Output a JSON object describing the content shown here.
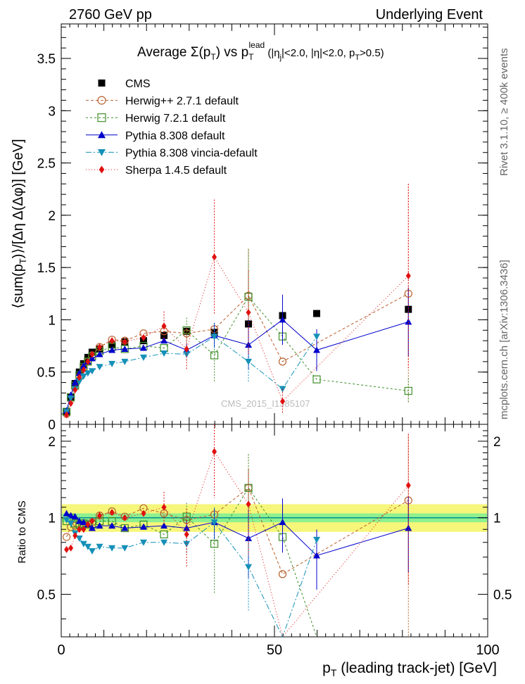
{
  "header": {
    "left": "2760 GeV pp",
    "right": "Underlying Event"
  },
  "side_labels": {
    "events": "Rivet 3.1.10, ≥ 400k events",
    "site": "mcplots.cern.ch [arXiv:1306.3436]"
  },
  "watermark": "CMS_2015_I1385107",
  "chart_data": [
    {
      "type": "scatter",
      "title_parts": {
        "a": "Average ",
        "b": "Σ(p",
        "c": "T",
        "d": ") vs p",
        "e": "T",
        "f": "lead",
        "g": " (|η",
        "h": "j",
        "i": "|<2.0, |η|<2.0, p",
        "j": "T",
        "k": ">0.5)"
      },
      "ylabel": "⟨sum(p_T)⟩/[Δη Δ(Δφ)] [GeV]",
      "xlim": [
        0,
        100
      ],
      "ylim": [
        0,
        3.83
      ],
      "yticks": [
        "0",
        "0.5",
        "1",
        "1.5",
        "2",
        "2.5",
        "3",
        "3.5"
      ],
      "ytick_values": [
        0,
        0.5,
        1,
        1.5,
        2,
        2.5,
        3,
        3.5
      ],
      "x": [
        1.25,
        2.25,
        3.25,
        4.25,
        5.25,
        6.25,
        7.25,
        9.0,
        11.9,
        14.9,
        19.3,
        24.1,
        29.4,
        35.9,
        43.9,
        51.9,
        59.9,
        81.4
      ],
      "series": [
        {
          "name": "CMS",
          "color": "#000000",
          "marker": "square",
          "values": [
            0.12,
            0.26,
            0.39,
            0.5,
            0.58,
            0.64,
            0.69,
            0.72,
            0.76,
            0.79,
            0.8,
            0.85,
            0.89,
            0.88,
            0.96,
            1.04,
            1.06,
            1.1
          ]
        },
        {
          "name": "Herwig++ 2.7.1 default",
          "color": "#b8602c",
          "marker": "circle-open",
          "dash": "4,3",
          "values": [
            0.1,
            0.24,
            0.36,
            0.46,
            0.54,
            0.6,
            0.66,
            0.74,
            0.81,
            0.8,
            0.87,
            0.89,
            0.87,
            0.91,
            1.23,
            0.6,
            null,
            1.25
          ]
        },
        {
          "name": "Herwig 7.2.1 default",
          "color": "#3f8f2a",
          "marker": "square-open",
          "dash": "3,3",
          "values": [
            0.12,
            0.26,
            0.37,
            0.47,
            0.55,
            0.6,
            0.65,
            0.7,
            0.74,
            0.72,
            0.75,
            0.73,
            0.9,
            0.66,
            1.22,
            0.84,
            0.43,
            0.32
          ]
        },
        {
          "name": "Pythia 8.308 default",
          "color": "#0000cc",
          "marker": "triangle-up",
          "dash": "",
          "values": [
            0.13,
            0.28,
            0.4,
            0.49,
            0.56,
            0.6,
            0.63,
            0.67,
            0.71,
            0.72,
            0.73,
            0.8,
            0.71,
            0.85,
            0.76,
            1.0,
            0.71,
            0.98
          ]
        },
        {
          "name": "Pythia 8.308 vincia-default",
          "color": "#1590b8",
          "marker": "triangle-down",
          "dash": "8,3,2,3",
          "values": [
            0.12,
            0.25,
            0.34,
            0.41,
            0.46,
            0.49,
            0.51,
            0.55,
            0.58,
            0.6,
            0.64,
            0.68,
            0.67,
            0.84,
            0.6,
            0.34,
            0.84,
            null
          ]
        },
        {
          "name": "Sherpa 1.4.5 default",
          "color": "#e01010",
          "marker": "diamond",
          "dash": "1,3",
          "values": [
            0.09,
            0.2,
            0.33,
            0.45,
            0.52,
            0.6,
            0.67,
            0.74,
            0.8,
            0.79,
            0.83,
            0.94,
            0.72,
            1.6,
            1.07,
            0.22,
            null,
            1.42
          ]
        }
      ],
      "errors": {
        "Herwig++ 2.7.1 default": [
          null,
          null,
          null,
          null,
          null,
          null,
          null,
          null,
          null,
          null,
          null,
          null,
          null,
          null,
          0.45,
          null,
          null,
          1.05
        ],
        "Herwig 7.2.1 default": [
          null,
          null,
          null,
          null,
          null,
          null,
          null,
          null,
          null,
          null,
          null,
          null,
          0.12,
          0.25,
          0.45,
          null,
          null,
          0.12
        ],
        "Pythia 8.308 default": [
          null,
          null,
          null,
          null,
          null,
          null,
          null,
          null,
          null,
          null,
          null,
          null,
          0.06,
          0.12,
          0.24,
          0.24,
          0.2,
          0.33
        ],
        "Pythia 8.308 vincia-default": [
          null,
          null,
          null,
          null,
          null,
          null,
          null,
          null,
          null,
          null,
          null,
          null,
          0.06,
          0.12,
          0.2,
          null,
          null,
          null
        ],
        "Sherpa 1.4.5 default": [
          null,
          null,
          null,
          null,
          null,
          null,
          null,
          null,
          null,
          null,
          null,
          0.14,
          0.2,
          0.55,
          0.4,
          0.12,
          null,
          0.88
        ]
      }
    },
    {
      "type": "scatter",
      "ylabel": "Ratio to CMS",
      "xlabel": "p_T (leading track-jet) [GeV]",
      "xlim": [
        0,
        100
      ],
      "ylim": [
        0.34,
        2.33
      ],
      "yticks_left": [
        "0.5",
        "1",
        "2"
      ],
      "yticks_right": [
        "0.5",
        "1",
        "2"
      ],
      "ytick_values": [
        0.5,
        1,
        2
      ],
      "xticks": [
        "0",
        "50",
        "100"
      ],
      "xtick_values": [
        0,
        50,
        100
      ],
      "band_inner": [
        0.96,
        1.04
      ],
      "band_outer": [
        0.88,
        1.13
      ],
      "x": [
        1.25,
        2.25,
        3.25,
        4.25,
        5.25,
        6.25,
        7.25,
        9.0,
        11.9,
        14.9,
        19.3,
        24.1,
        29.4,
        35.9,
        43.9,
        51.9,
        59.9,
        81.4
      ],
      "series": [
        {
          "name": "Herwig++ 2.7.1 default",
          "values": [
            0.84,
            0.92,
            0.93,
            0.93,
            0.94,
            0.94,
            0.96,
            1.02,
            1.06,
            1.01,
            1.09,
            1.04,
            0.98,
            1.03,
            1.31,
            0.6,
            null,
            1.17
          ]
        },
        {
          "name": "Herwig 7.2.1 default",
          "values": [
            0.97,
            1.0,
            0.95,
            0.94,
            0.95,
            0.94,
            0.94,
            0.97,
            0.97,
            0.91,
            0.94,
            0.86,
            1.01,
            0.79,
            1.31,
            0.84,
            0.32,
            null
          ]
        },
        {
          "name": "Pythia 8.308 default",
          "values": [
            1.04,
            1.02,
            1.01,
            0.97,
            0.96,
            0.94,
            0.91,
            0.93,
            0.93,
            0.91,
            0.92,
            0.93,
            0.91,
            0.96,
            0.83,
            0.96,
            0.71,
            0.91
          ]
        },
        {
          "name": "Pythia 8.308 vincia-default",
          "values": [
            0.98,
            0.95,
            0.87,
            0.83,
            0.79,
            0.77,
            0.74,
            0.77,
            0.76,
            0.76,
            0.8,
            0.8,
            0.79,
            0.96,
            0.64,
            0.31,
            0.82,
            null
          ]
        },
        {
          "name": "Sherpa 1.4.5 default",
          "values": [
            0.75,
            0.76,
            0.85,
            0.9,
            0.9,
            0.94,
            0.97,
            1.02,
            1.05,
            1.0,
            1.04,
            1.1,
            0.86,
            1.82,
            1.13,
            0.2,
            null,
            1.34
          ]
        }
      ]
    }
  ]
}
